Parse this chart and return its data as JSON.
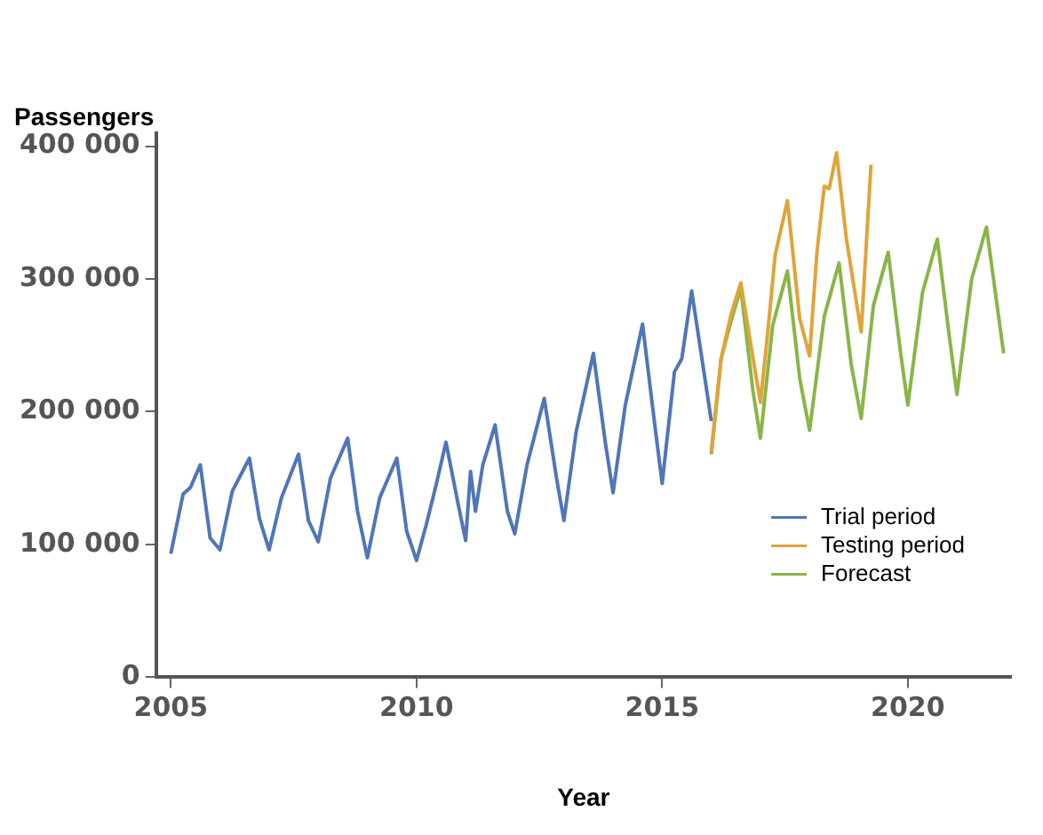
{
  "chart_data": {
    "type": "line",
    "ylabel": "Passengers",
    "xlabel": "Year",
    "xlim": [
      2004.7,
      2022.1
    ],
    "xticks": [
      2005,
      2010,
      2015,
      2020
    ],
    "ylim": [
      0,
      410000
    ],
    "yticks": [
      {
        "value": 0,
        "label": "0"
      },
      {
        "value": 100000,
        "label": "100 000"
      },
      {
        "value": 200000,
        "label": "200 000"
      },
      {
        "value": 300000,
        "label": "300 000"
      },
      {
        "value": 400000,
        "label": "400 000"
      }
    ],
    "grid": false,
    "legend": "bottom right",
    "marker": "none",
    "line_style": "solid",
    "series": [
      {
        "name": "Trial period",
        "color": "#4f76b8",
        "x": [
          2005.0,
          2005.25,
          2005.4,
          2005.6,
          2005.8,
          2006.0,
          2006.25,
          2006.6,
          2006.8,
          2007.0,
          2007.25,
          2007.6,
          2007.8,
          2008.0,
          2008.25,
          2008.6,
          2008.8,
          2009.0,
          2009.25,
          2009.6,
          2009.8,
          2010.0,
          2010.2,
          2010.4,
          2010.6,
          2010.85,
          2011.0,
          2011.1,
          2011.2,
          2011.35,
          2011.6,
          2011.85,
          2012.0,
          2012.25,
          2012.6,
          2012.85,
          2013.0,
          2013.25,
          2013.6,
          2013.85,
          2014.0,
          2014.25,
          2014.6,
          2014.85,
          2015.0,
          2015.25,
          2015.4,
          2015.6,
          2015.85,
          2016.0
        ],
        "values": [
          93000,
          138000,
          143000,
          160000,
          105000,
          96000,
          140000,
          165000,
          120000,
          96000,
          135000,
          168000,
          118000,
          102000,
          150000,
          180000,
          125000,
          90000,
          135000,
          165000,
          110000,
          88000,
          115000,
          145000,
          177000,
          130000,
          103000,
          155000,
          125000,
          160000,
          190000,
          125000,
          108000,
          160000,
          210000,
          150000,
          118000,
          185000,
          244000,
          175000,
          139000,
          205000,
          266000,
          190000,
          146000,
          230000,
          240000,
          291000,
          230000,
          193000
        ]
      },
      {
        "name": "Testing period",
        "color": "#e1a33a",
        "x": [
          2016.0,
          2016.2,
          2016.4,
          2016.6,
          2016.85,
          2017.0,
          2017.15,
          2017.3,
          2017.55,
          2017.8,
          2018.0,
          2018.15,
          2018.3,
          2018.4,
          2018.55,
          2018.75,
          2019.05,
          2019.25
        ],
        "values": [
          170000,
          240000,
          273000,
          297000,
          240000,
          207000,
          260000,
          318000,
          359000,
          270000,
          242000,
          320000,
          370000,
          368000,
          395000,
          330000,
          260000,
          386000
        ]
      },
      {
        "name": "Forecast",
        "color": "#8ab547",
        "x": [
          2016.0,
          2016.2,
          2016.4,
          2016.6,
          2016.85,
          2017.0,
          2017.25,
          2017.55,
          2017.8,
          2018.0,
          2018.3,
          2018.6,
          2018.85,
          2019.05,
          2019.3,
          2019.6,
          2019.85,
          2020.0,
          2020.3,
          2020.6,
          2020.85,
          2021.0,
          2021.3,
          2021.6,
          2021.95
        ],
        "values": [
          168000,
          240000,
          268000,
          293000,
          215000,
          180000,
          265000,
          306000,
          225000,
          186000,
          272000,
          312000,
          235000,
          195000,
          280000,
          320000,
          245000,
          205000,
          290000,
          330000,
          255000,
          213000,
          300000,
          339000,
          244000
        ]
      }
    ]
  }
}
